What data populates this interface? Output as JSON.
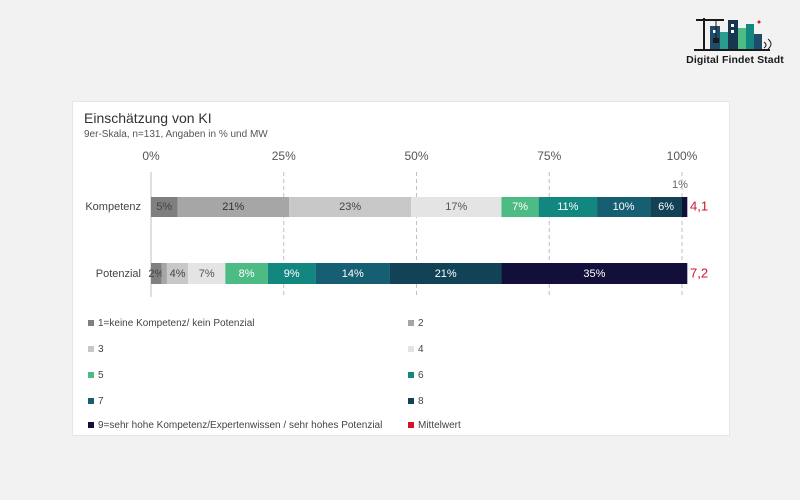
{
  "logo": {
    "text": "Digital Findet Stadt",
    "icon": "city-skyline-logo-icon"
  },
  "chart_data": {
    "type": "bar",
    "orientation": "horizontal",
    "stacked": true,
    "title": "Einschätzung von KI",
    "subtitle": "9er-Skala, n=131, Angaben in % und MW",
    "x_ticks": [
      "0%",
      "25%",
      "50%",
      "75%",
      "100%"
    ],
    "xlim": [
      0,
      100
    ],
    "grid": "dashed vertical lines at 25% steps",
    "categories": [
      "Kompetenz",
      "Potenzial"
    ],
    "series": [
      {
        "name": "1=keine Kompetenz/ kein Potenzial",
        "color": "#7f7f7f",
        "label_color": "#444444",
        "values": [
          5,
          2
        ],
        "labels": [
          "5%",
          "2%"
        ]
      },
      {
        "name": "2",
        "color": "#a6a6a6",
        "label_color": "#333333",
        "values": [
          21,
          1
        ],
        "labels": [
          "21%",
          ""
        ]
      },
      {
        "name": "3",
        "color": "#c8c8c8",
        "label_color": "#444444",
        "values": [
          23,
          4
        ],
        "labels": [
          "23%",
          "4%"
        ]
      },
      {
        "name": "4",
        "color": "#e4e4e4",
        "label_color": "#555555",
        "values": [
          17,
          7
        ],
        "labels": [
          "17%",
          "7%"
        ]
      },
      {
        "name": "5",
        "color": "#4dbb84",
        "label_color": "#ffffff",
        "values": [
          7,
          8
        ],
        "labels": [
          "7%",
          "8%"
        ]
      },
      {
        "name": "6",
        "color": "#12877f",
        "label_color": "#ffffff",
        "values": [
          11,
          9
        ],
        "labels": [
          "11%",
          "9%"
        ]
      },
      {
        "name": "7",
        "color": "#165e72",
        "label_color": "#ffffff",
        "values": [
          10,
          14
        ],
        "labels": [
          "10%",
          "14%"
        ]
      },
      {
        "name": "8",
        "color": "#114255",
        "label_color": "#ffffff",
        "values": [
          6,
          21
        ],
        "labels": [
          "6%",
          "21%"
        ]
      },
      {
        "name": "9=sehr hohe Kompetenz/Expertenwissen / sehr hohes Potenzial",
        "color": "#12103a",
        "label_color": "#ffffff",
        "values": [
          1,
          35
        ],
        "labels": [
          "",
          "35%"
        ]
      }
    ],
    "outside_labels": [
      {
        "category": "Kompetenz",
        "series": "9=sehr hohe Kompetenz/Expertenwissen / sehr hohes Potenzial",
        "text": "1%"
      }
    ],
    "mean": {
      "name": "Mittelwert",
      "color": "#d0152b",
      "values": [
        4.1,
        7.2
      ],
      "labels": [
        "4,1",
        "7,2"
      ]
    },
    "legend_position": "bottom, two columns"
  }
}
